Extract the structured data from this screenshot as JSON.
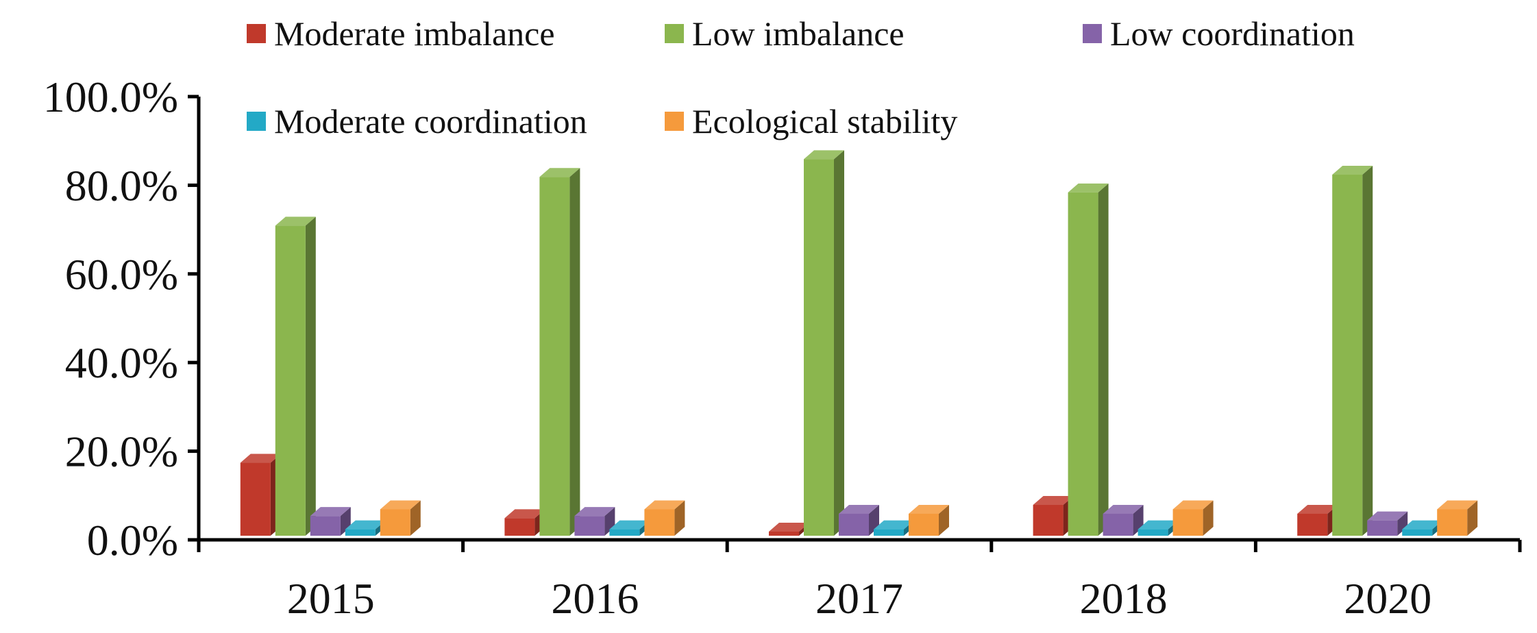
{
  "chart_data": {
    "type": "bar",
    "title": "",
    "xlabel": "",
    "ylabel": "",
    "ylim": [
      0,
      100
    ],
    "y_ticks": [
      "0.0%",
      "20.0%",
      "40.0%",
      "60.0%",
      "80.0%",
      "100.0%"
    ],
    "y_tick_values": [
      0,
      20,
      40,
      60,
      80,
      100
    ],
    "grid": false,
    "style": "3d-column",
    "legend_position": "top",
    "categories": [
      "2015",
      "2016",
      "2017",
      "2018",
      "2020"
    ],
    "series": [
      {
        "name": "Moderate imbalance",
        "color": "#c0392b",
        "values": [
          18.0,
          5.5,
          2.0,
          8.5,
          6.5
        ]
      },
      {
        "name": "Low imbalance",
        "color": "#8bb64e",
        "values": [
          71.5,
          82.5,
          86.5,
          79.0,
          83.0
        ]
      },
      {
        "name": "Low coordination",
        "color": "#8563a8",
        "values": [
          6.0,
          6.0,
          6.5,
          6.5,
          5.0
        ]
      },
      {
        "name": "Moderate coordination",
        "color": "#23a9c6",
        "values": [
          3.0,
          3.0,
          3.0,
          3.0,
          3.0
        ]
      },
      {
        "name": "Ecological stability",
        "color": "#f59a3c",
        "values": [
          7.5,
          7.5,
          6.5,
          7.5,
          7.5
        ]
      }
    ]
  }
}
